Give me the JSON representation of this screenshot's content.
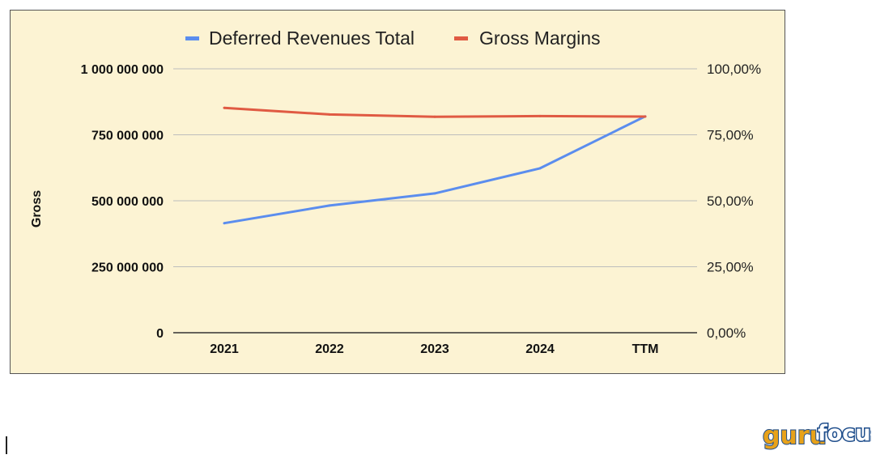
{
  "chart_data": {
    "type": "line",
    "legend": [
      {
        "name": "Deferred Revenues Total",
        "color": "#5b8dee"
      },
      {
        "name": "Gross Margins",
        "color": "#e05a43"
      }
    ],
    "legend_position": "top-center",
    "categories": [
      "2021",
      "2022",
      "2023",
      "2024",
      "TTM"
    ],
    "series": [
      {
        "name": "Deferred Revenues Total",
        "axis": "left",
        "color": "#5b8dee",
        "values": [
          415000000,
          482000000,
          528000000,
          623000000,
          820000000
        ]
      },
      {
        "name": "Gross Margins",
        "axis": "right",
        "color": "#e05a43",
        "values": [
          0.852,
          0.827,
          0.818,
          0.821,
          0.819
        ]
      }
    ],
    "ylabel": "Gross",
    "ylim_left": [
      0,
      1000000000
    ],
    "ylim_right": [
      0,
      1
    ],
    "yticks_left": [
      "1 000 000 000",
      "750 000 000",
      "500 000 000",
      "250 000 000",
      "0"
    ],
    "yticks_left_values": [
      1000000000,
      750000000,
      500000000,
      250000000,
      0
    ],
    "yticks_right": [
      "100,00%",
      "75,00%",
      "50,00%",
      "25,00%",
      "0,00%"
    ],
    "gridlines": true,
    "background": "#fcf3d3"
  },
  "watermark": {
    "text": "gurufocus",
    "part1": "guru",
    "part2": "focus"
  }
}
